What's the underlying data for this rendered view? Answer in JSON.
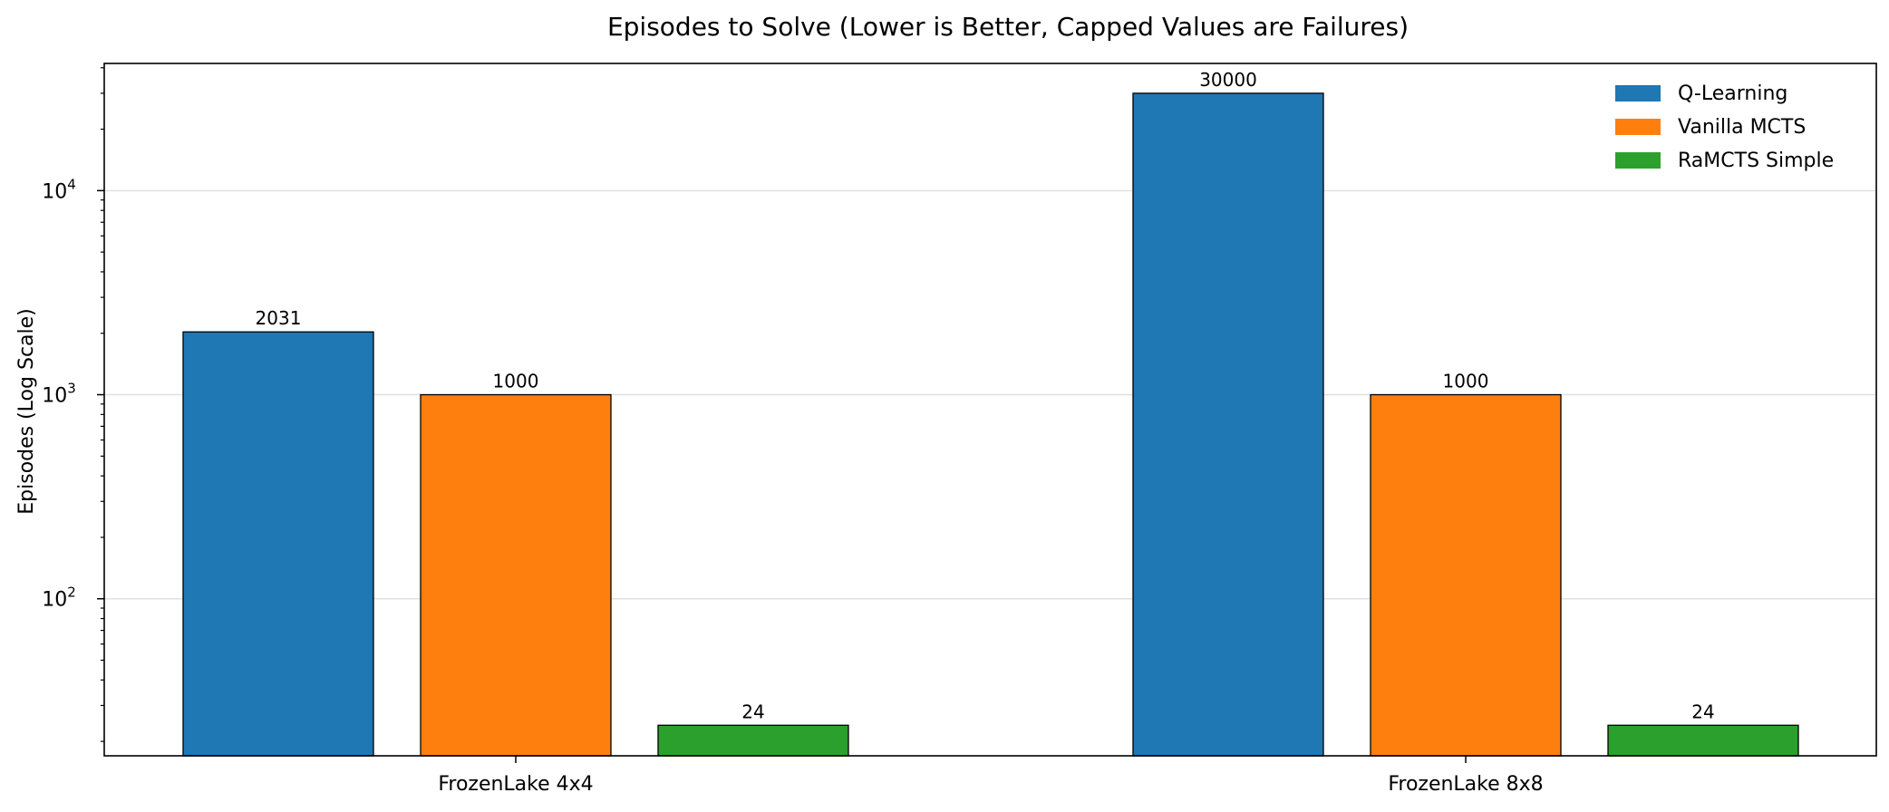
{
  "chart_data": {
    "type": "bar",
    "title": "Episodes to Solve (Lower is Better, Capped Values are Failures)",
    "xlabel": "",
    "ylabel": "Episodes (Log Scale)",
    "yscale": "log",
    "ylim": [
      17,
      42000
    ],
    "yticks": [
      {
        "value": 100,
        "base": "10",
        "exp": "2"
      },
      {
        "value": 1000,
        "base": "10",
        "exp": "3"
      },
      {
        "value": 10000,
        "base": "10",
        "exp": "4"
      }
    ],
    "grid": "y-major",
    "legend_position": "top-right",
    "categories": [
      "FrozenLake 4x4",
      "FrozenLake 8x8"
    ],
    "series": [
      {
        "name": "Q-Learning",
        "color": "#1f77b4",
        "values": [
          2031,
          30000
        ],
        "labels": [
          "2031",
          "30000"
        ]
      },
      {
        "name": "Vanilla MCTS",
        "color": "#ff7f0e",
        "values": [
          1000,
          1000
        ],
        "labels": [
          "1000",
          "1000"
        ]
      },
      {
        "name": "RaMCTS Simple",
        "color": "#2ca02c",
        "values": [
          24,
          24
        ],
        "labels": [
          "24",
          "24"
        ]
      }
    ]
  }
}
